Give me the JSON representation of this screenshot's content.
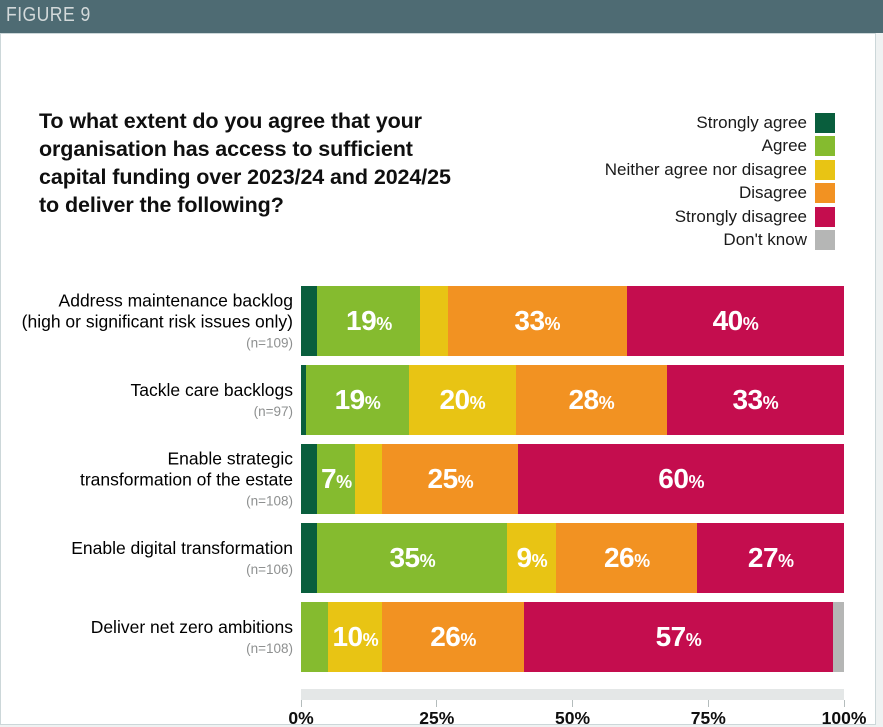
{
  "figure_label": "FIGURE 9",
  "title_lines": [
    "To what extent do you agree that your",
    "organisation has access to sufficient",
    "capital funding over 2023/24 and 2024/25",
    "to deliver the following?"
  ],
  "colors": {
    "header_bar": "#4e6b73",
    "card_border": "#ccd7d9",
    "page_background": "#eff2f2",
    "strongly_agree": "#095e3d",
    "agree": "#85bb2f",
    "neither": "#e8c414",
    "disagree": "#f29222",
    "strongly_disagree": "#c40d4e",
    "dont_know": "#b5b6b5",
    "axis_track": "#e4e7e7",
    "tick": "#b4bcbc",
    "n_label": "#8e9090"
  },
  "legend": {
    "items": [
      {
        "key": "strongly_agree",
        "label": "Strongly agree"
      },
      {
        "key": "agree",
        "label": "Agree"
      },
      {
        "key": "neither",
        "label": "Neither agree nor disagree"
      },
      {
        "key": "disagree",
        "label": "Disagree"
      },
      {
        "key": "strongly_disagree",
        "label": "Strongly disagree"
      },
      {
        "key": "dont_know",
        "label": "Don't know"
      }
    ]
  },
  "chart_data": {
    "type": "bar",
    "variant": "horizontal-stacked-100pct",
    "title": "To what extent do you agree that your organisation has access to sufficient capital funding over 2023/24 and 2024/25 to deliver the following?",
    "series": [
      "Strongly agree",
      "Agree",
      "Neither agree nor disagree",
      "Disagree",
      "Strongly disagree",
      "Don't know"
    ],
    "x_axis": {
      "range": [
        0,
        100
      ],
      "unit": "%",
      "ticks": [
        {
          "label": "0%",
          "value": 0
        },
        {
          "label": "25%",
          "value": 25
        },
        {
          "label": "50%",
          "value": 50
        },
        {
          "label": "75%",
          "value": 75
        },
        {
          "label": "100%",
          "value": 100
        }
      ]
    },
    "rows": [
      {
        "category": "Address maintenance backlog (high or significant risk issues only)",
        "category_lines": [
          "Address maintenance backlog",
          "(high or significant risk issues only)"
        ],
        "n_label": "(n=109)",
        "segments": [
          {
            "key": "strongly_agree",
            "value": 3,
            "label": ""
          },
          {
            "key": "agree",
            "value": 19,
            "label": "19%"
          },
          {
            "key": "neither",
            "value": 5,
            "label": ""
          },
          {
            "key": "disagree",
            "value": 33,
            "label": "33%"
          },
          {
            "key": "strongly_disagree",
            "value": 40,
            "label": "40%"
          }
        ]
      },
      {
        "category": "Tackle care backlogs",
        "category_lines": [
          "Tackle care backlogs"
        ],
        "n_label": "(n=97)",
        "segments": [
          {
            "key": "strongly_agree",
            "value": 1,
            "label": ""
          },
          {
            "key": "agree",
            "value": 19,
            "label": "19%"
          },
          {
            "key": "neither",
            "value": 20,
            "label": "20%"
          },
          {
            "key": "disagree",
            "value": 28,
            "label": "28%"
          },
          {
            "key": "strongly_disagree",
            "value": 33,
            "label": "33%"
          }
        ]
      },
      {
        "category": "Enable strategic transformation of the estate",
        "category_lines": [
          "Enable strategic",
          "transformation of the estate"
        ],
        "n_label": "(n=108)",
        "segments": [
          {
            "key": "strongly_agree",
            "value": 3,
            "label": ""
          },
          {
            "key": "agree",
            "value": 7,
            "label": "7%"
          },
          {
            "key": "neither",
            "value": 5,
            "label": ""
          },
          {
            "key": "disagree",
            "value": 25,
            "label": "25%"
          },
          {
            "key": "strongly_disagree",
            "value": 60,
            "label": "60%"
          }
        ]
      },
      {
        "category": "Enable digital transformation",
        "category_lines": [
          "Enable digital transformation"
        ],
        "n_label": "(n=106)",
        "segments": [
          {
            "key": "strongly_agree",
            "value": 3,
            "label": ""
          },
          {
            "key": "agree",
            "value": 35,
            "label": "35%"
          },
          {
            "key": "neither",
            "value": 9,
            "label": "9%"
          },
          {
            "key": "disagree",
            "value": 26,
            "label": "26%"
          },
          {
            "key": "strongly_disagree",
            "value": 27,
            "label": "27%"
          }
        ]
      },
      {
        "category": "Deliver net zero ambitions",
        "category_lines": [
          "Deliver net zero ambitions"
        ],
        "n_label": "(n=108)",
        "segments": [
          {
            "key": "agree",
            "value": 5,
            "label": ""
          },
          {
            "key": "neither",
            "value": 10,
            "label": "10%"
          },
          {
            "key": "disagree",
            "value": 26,
            "label": "26%"
          },
          {
            "key": "strongly_disagree",
            "value": 57,
            "label": "57%"
          },
          {
            "key": "dont_know",
            "value": 2,
            "label": ""
          }
        ]
      }
    ]
  }
}
